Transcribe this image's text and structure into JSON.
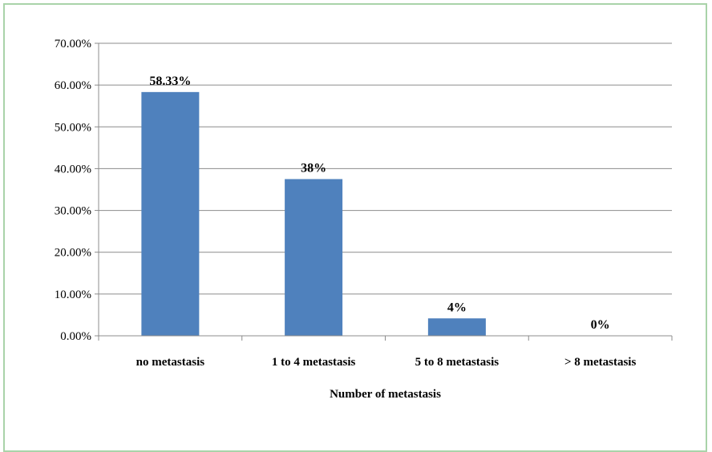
{
  "chart_data": {
    "type": "bar",
    "categories": [
      "no metastasis",
      "1 to 4 metastasis",
      "5 to 8 metastasis",
      "> 8 metastasis"
    ],
    "values": [
      58.33,
      37.5,
      4.17,
      0
    ],
    "data_labels": [
      "58.33%",
      "38%",
      "4%",
      "0%"
    ],
    "xlabel": "Number of metastasis",
    "ylabel": "",
    "ylim": [
      0,
      70
    ],
    "yticks": [
      "0.00%",
      "10.00%",
      "20.00%",
      "30.00%",
      "40.00%",
      "50.00%",
      "60.00%",
      "70.00%"
    ],
    "bar_color": "#4f81bd",
    "grid": true,
    "legend": "none"
  }
}
